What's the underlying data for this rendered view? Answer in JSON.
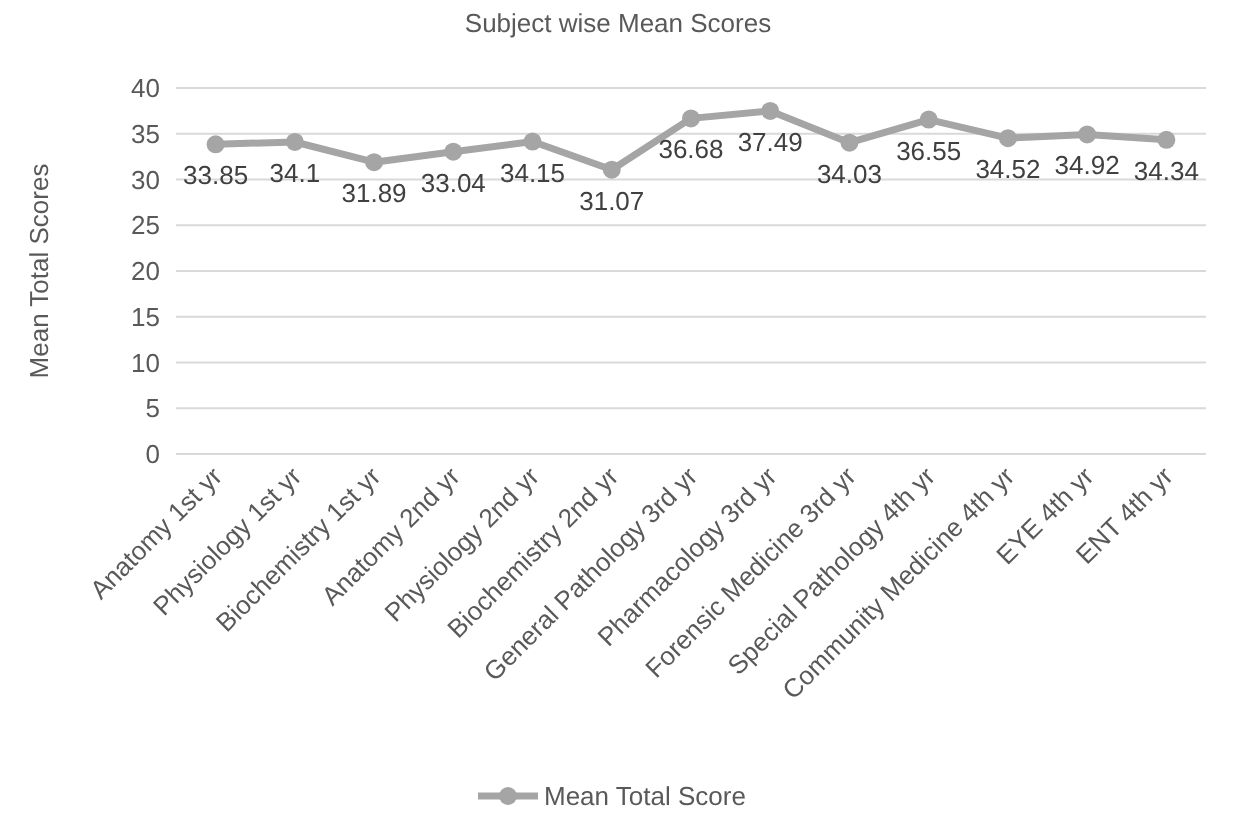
{
  "chart_data": {
    "type": "line",
    "title": "Subject wise Mean Scores",
    "ylabel": "Mean  Total Scores",
    "categories": [
      "Anatomy 1st yr",
      "Physiology 1st yr",
      "Biochemistry 1st yr",
      "Anatomy 2nd yr",
      "Physiology 2nd yr",
      "Biochemistry 2nd yr",
      "General Pathology 3rd yr",
      "Pharmacology 3rd yr",
      "Forensic Medicine 3rd yr",
      "Special Pathology 4th yr",
      "Community Medicine 4th yr",
      "EYE 4th yr",
      "ENT 4th yr"
    ],
    "series": [
      {
        "name": "Mean Total Score",
        "color": "#a5a5a5",
        "values": [
          33.85,
          34.1,
          31.89,
          33.04,
          34.15,
          31.07,
          36.68,
          37.49,
          34.03,
          36.55,
          34.52,
          34.92,
          34.34
        ]
      }
    ],
    "ylim": [
      0,
      40
    ],
    "yticks": [
      0,
      5,
      10,
      15,
      20,
      25,
      30,
      35,
      40
    ],
    "grid": "y",
    "legend": "bottom",
    "marker": "circle",
    "line_style": "solid",
    "data_labels": true
  }
}
